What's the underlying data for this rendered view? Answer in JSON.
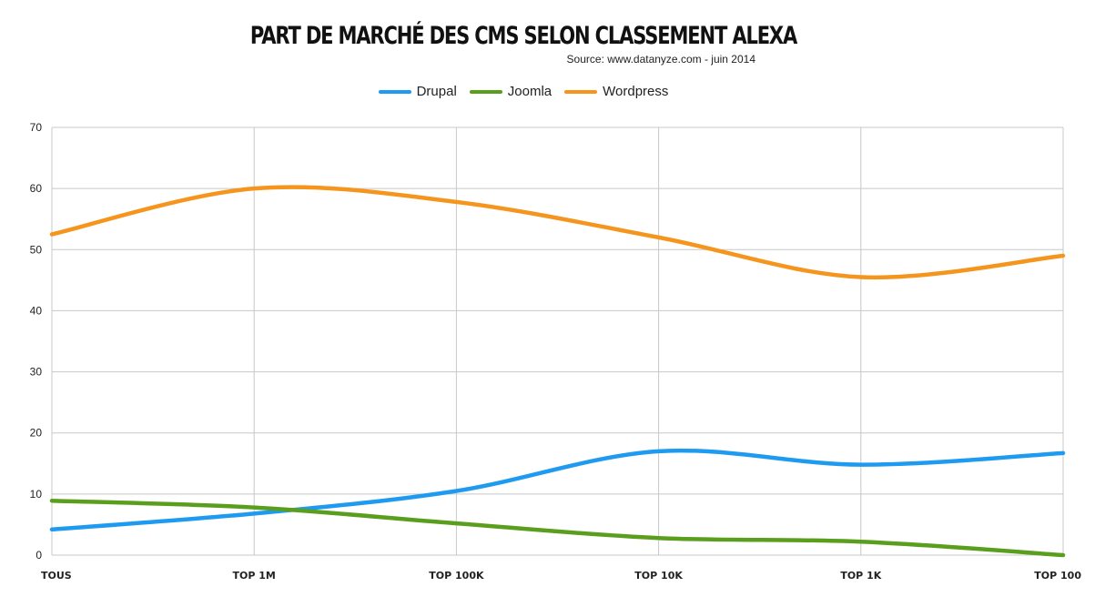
{
  "chart_data": {
    "type": "line",
    "title": "PART DE MARCHÉ DES CMS SELON CLASSEMENT ALEXA",
    "subtitle": "Source: www.datanyze.com - juin 2014",
    "categories": [
      "TOUS",
      "TOP 1M",
      "TOP 100K",
      "TOP 10K",
      "TOP 1K",
      "TOP 100"
    ],
    "series": [
      {
        "name": "Drupal",
        "color": "#1e9bf0",
        "values": [
          4.2,
          6.8,
          10.5,
          17.0,
          14.8,
          16.7
        ]
      },
      {
        "name": "Joomla",
        "color": "#5a9e1e",
        "values": [
          8.9,
          7.8,
          5.2,
          2.8,
          2.2,
          0.0
        ]
      },
      {
        "name": "Wordpress",
        "color": "#f5951d",
        "values": [
          52.5,
          60.0,
          57.8,
          52.0,
          45.5,
          49.0
        ]
      }
    ],
    "ylim": [
      0,
      70
    ],
    "yticks": [
      0,
      10,
      20,
      30,
      40,
      50,
      60,
      70
    ],
    "xlabel": "",
    "ylabel": "",
    "grid": true,
    "smooth": true,
    "legend_position": "top-center"
  }
}
